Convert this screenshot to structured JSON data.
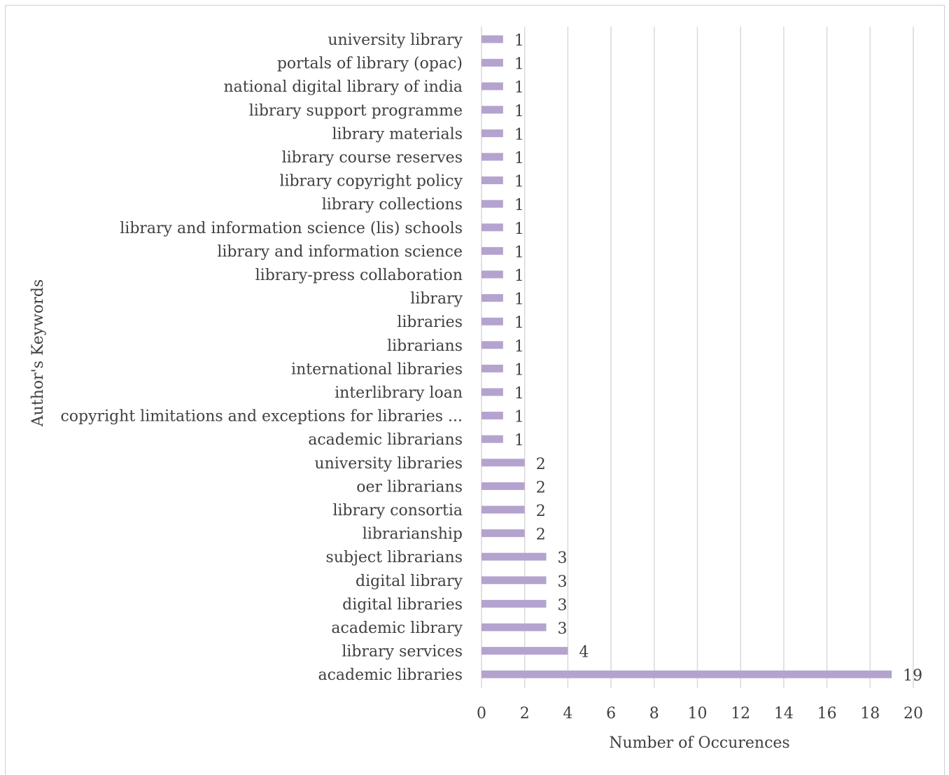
{
  "chart_data": {
    "type": "bar",
    "orientation": "horizontal",
    "xlabel": "Number of Occurences",
    "ylabel": "Author's Keywords",
    "xlim": [
      0,
      20
    ],
    "xticks": [
      0,
      2,
      4,
      6,
      8,
      10,
      12,
      14,
      16,
      18,
      20
    ],
    "grid": true,
    "bar_color": "#b4a3cf",
    "categories": [
      "university library",
      "portals of library (opac)",
      "national digital library of india",
      "library support programme",
      "library materials",
      "library course reserves",
      "library copyright policy",
      "library collections",
      "library and information science (lis) schools",
      "library and information science",
      "library-press collaboration",
      "library",
      "libraries",
      "librarians",
      "international libraries",
      "interlibrary loan",
      "copyright limitations and exceptions for libraries ...",
      "academic librarians",
      "university libraries",
      "oer librarians",
      "library consortia",
      "librarianship",
      "subject librarians",
      "digital library",
      "digital libraries",
      "academic library",
      "library services",
      "academic libraries"
    ],
    "values": [
      1,
      1,
      1,
      1,
      1,
      1,
      1,
      1,
      1,
      1,
      1,
      1,
      1,
      1,
      1,
      1,
      1,
      1,
      2,
      2,
      2,
      2,
      3,
      3,
      3,
      3,
      4,
      19
    ]
  }
}
